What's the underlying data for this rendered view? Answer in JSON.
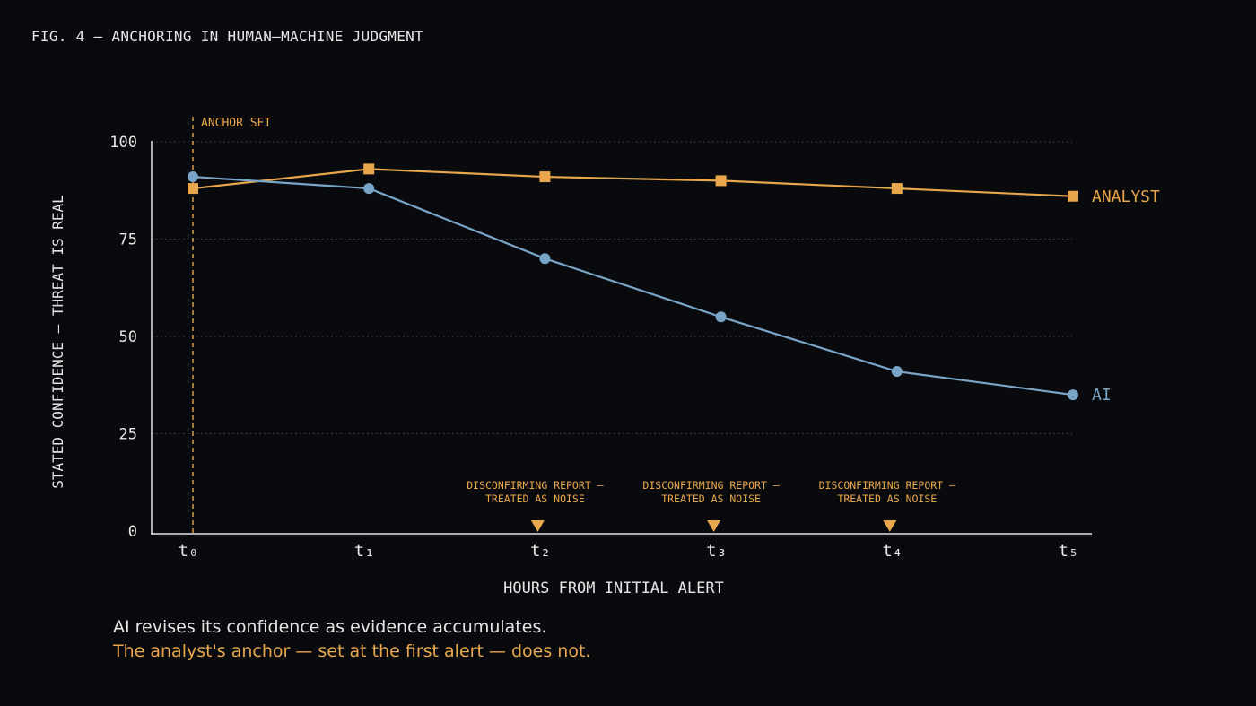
{
  "figure": {
    "title": "FIG. 4 — ANCHORING IN HUMAN–MACHINE JUDGMENT",
    "caption_line1": "AI revises its confidence as evidence accumulates.",
    "caption_line2": "The analyst's anchor — set at the first alert — does not."
  },
  "colors": {
    "background": "#090a0d",
    "text": "#e6e6e6",
    "analyst": "#e8a74c",
    "ai": "#79a6c8",
    "grid": "#4a4c52"
  },
  "chart_data": {
    "type": "line",
    "title": "",
    "xlabel": "HOURS FROM INITIAL ALERT",
    "ylabel": "STATED CONFIDENCE — THREAT IS REAL",
    "categories": [
      "t₀",
      "t₁",
      "t₂",
      "t₃",
      "t₄",
      "t₅"
    ],
    "ylim": [
      0,
      100
    ],
    "yticks": [
      0,
      25,
      50,
      75,
      100
    ],
    "grid": true,
    "series": [
      {
        "name": "ANALYST",
        "marker": "square",
        "color": "#e8a74c",
        "values": [
          88,
          93,
          91,
          90,
          88,
          86
        ]
      },
      {
        "name": "AI",
        "marker": "circle",
        "color": "#79a6c8",
        "values": [
          91,
          88,
          70,
          55,
          41,
          35
        ]
      }
    ],
    "anchor": {
      "label": "ANCHOR SET",
      "x_index": 0
    },
    "annotations": [
      {
        "x_index": 2,
        "line1": "DISCONFIRMING REPORT —",
        "line2": "TREATED AS NOISE"
      },
      {
        "x_index": 3,
        "line1": "DISCONFIRMING REPORT —",
        "line2": "TREATED AS NOISE"
      },
      {
        "x_index": 4,
        "line1": "DISCONFIRMING REPORT —",
        "line2": "TREATED AS NOISE"
      }
    ]
  }
}
